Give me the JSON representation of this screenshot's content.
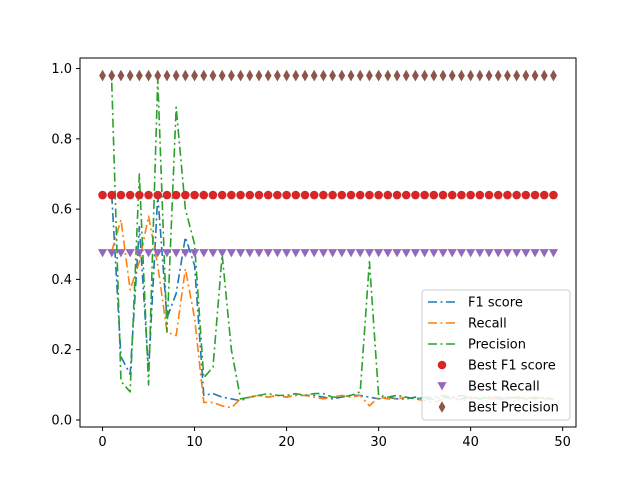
{
  "chart_data": {
    "type": "line",
    "title": "",
    "xlabel": "",
    "ylabel": "",
    "xlim": [
      -2.45,
      51.45
    ],
    "ylim": [
      -0.02,
      1.03
    ],
    "xticks": [
      0,
      10,
      20,
      30,
      40,
      50
    ],
    "xtick_labels": [
      "0",
      "10",
      "20",
      "30",
      "40",
      "50"
    ],
    "yticks": [
      0.0,
      0.2,
      0.4,
      0.6,
      0.8,
      1.0
    ],
    "ytick_labels": [
      "0.0",
      "0.2",
      "0.4",
      "0.6",
      "0.8",
      "1.0"
    ],
    "grid": false,
    "legend_position": "lower-right",
    "x": [
      0,
      1,
      2,
      3,
      4,
      5,
      6,
      7,
      8,
      9,
      10,
      11,
      12,
      13,
      14,
      15,
      16,
      17,
      18,
      19,
      20,
      21,
      22,
      23,
      24,
      25,
      26,
      27,
      28,
      29,
      30,
      31,
      32,
      33,
      34,
      35,
      36,
      37,
      38,
      39,
      40,
      41,
      42,
      43,
      44,
      45,
      46,
      47,
      48,
      49
    ],
    "series": [
      {
        "name": "F1 score",
        "kind": "line",
        "style": "dashdot",
        "color": "#1f77b4",
        "x": [
          1,
          2,
          3,
          4,
          5,
          6,
          7,
          8,
          9,
          10,
          11,
          12,
          13,
          14,
          15,
          16,
          17,
          18,
          19,
          20,
          21,
          22,
          23,
          24,
          25,
          26,
          27,
          28,
          29,
          30,
          31,
          32,
          33,
          34,
          35,
          36,
          37,
          38,
          39,
          40,
          41,
          42,
          43,
          44,
          45,
          46,
          47,
          48,
          49
        ],
        "values": [
          0.64,
          0.18,
          0.13,
          0.55,
          0.14,
          0.64,
          0.29,
          0.36,
          0.52,
          0.44,
          0.07,
          0.075,
          0.065,
          0.06,
          0.055,
          0.065,
          0.07,
          0.065,
          0.07,
          0.065,
          0.07,
          0.07,
          0.07,
          0.065,
          0.06,
          0.065,
          0.07,
          0.07,
          0.065,
          0.06,
          0.065,
          0.06,
          0.06,
          0.065,
          0.06,
          0.06,
          0.065,
          0.06,
          0.06,
          0.065,
          0.06,
          0.065,
          0.06,
          0.06,
          0.065,
          0.06,
          0.065,
          0.06,
          0.06
        ]
      },
      {
        "name": "Recall",
        "kind": "line",
        "style": "dashdot",
        "color": "#ff7f0e",
        "x": [
          1,
          2,
          3,
          4,
          5,
          6,
          7,
          8,
          9,
          10,
          11,
          12,
          13,
          14,
          15,
          16,
          17,
          18,
          19,
          20,
          21,
          22,
          23,
          24,
          25,
          26,
          27,
          28,
          29,
          30,
          31,
          32,
          33,
          34,
          35,
          36,
          37,
          38,
          39,
          40,
          41,
          42,
          43,
          44,
          45,
          46,
          47,
          48,
          49
        ],
        "values": [
          0.48,
          0.57,
          0.37,
          0.45,
          0.58,
          0.44,
          0.25,
          0.24,
          0.43,
          0.29,
          0.05,
          0.05,
          0.04,
          0.035,
          0.06,
          0.065,
          0.07,
          0.065,
          0.07,
          0.065,
          0.07,
          0.07,
          0.065,
          0.06,
          0.065,
          0.07,
          0.065,
          0.07,
          0.04,
          0.065,
          0.06,
          0.06,
          0.065,
          0.06,
          0.055,
          0.05,
          0.06,
          0.065,
          0.055,
          0.06,
          0.065,
          0.06,
          0.06,
          0.065,
          0.06,
          0.06,
          0.065,
          0.06,
          0.06
        ]
      },
      {
        "name": "Precision",
        "kind": "line",
        "style": "dashdot",
        "color": "#2ca02c",
        "x": [
          1,
          2,
          3,
          4,
          5,
          6,
          7,
          8,
          9,
          10,
          11,
          12,
          13,
          14,
          15,
          16,
          17,
          18,
          19,
          20,
          21,
          22,
          23,
          24,
          25,
          26,
          27,
          28,
          29,
          30,
          31,
          32,
          33,
          34,
          35,
          36,
          37,
          38,
          39,
          40,
          41,
          42,
          43,
          44,
          45,
          46,
          47,
          48,
          49
        ],
        "values": [
          0.96,
          0.11,
          0.08,
          0.7,
          0.1,
          0.97,
          0.25,
          0.89,
          0.6,
          0.5,
          0.12,
          0.15,
          0.47,
          0.2,
          0.06,
          0.065,
          0.07,
          0.075,
          0.07,
          0.07,
          0.075,
          0.07,
          0.075,
          0.075,
          0.065,
          0.065,
          0.07,
          0.08,
          0.45,
          0.07,
          0.065,
          0.07,
          0.065,
          0.06,
          0.065,
          0.065,
          0.07,
          0.065,
          0.07,
          0.065,
          0.06,
          0.065,
          0.065,
          0.06,
          0.065,
          0.065,
          0.06,
          0.065,
          0.06
        ]
      },
      {
        "name": "Best F1 score",
        "kind": "markers",
        "marker": "circle",
        "color": "#d62728",
        "constant_value": 0.64
      },
      {
        "name": "Best Recall",
        "kind": "markers",
        "marker": "triangle-down",
        "color": "#9467bd",
        "constant_value": 0.475
      },
      {
        "name": "Best Precision",
        "kind": "markers",
        "marker": "thin-diamond",
        "color": "#8c564b",
        "constant_value": 0.98
      }
    ]
  }
}
